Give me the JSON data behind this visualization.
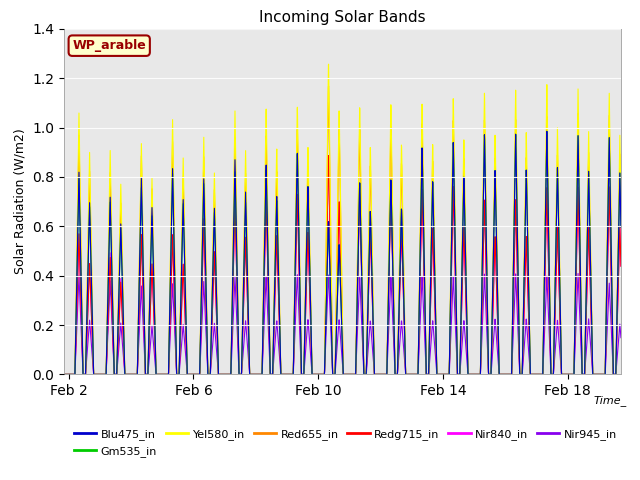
{
  "title": "Incoming Solar Bands",
  "xlabel": "Time_",
  "ylabel": "Solar Radiation (W/m2)",
  "ylim": [
    0,
    1.4
  ],
  "plot_bg_color": "#e8e8e8",
  "annotation_text": "WP_arable",
  "annotation_bg": "#ffffcc",
  "annotation_fg": "#990000",
  "series_order": [
    "Nir945_in",
    "Nir840_in",
    "Redg715_in",
    "Red655_in",
    "Yel580_in",
    "Gm535_in",
    "Blu475_in"
  ],
  "series": {
    "Blu475_in": {
      "color": "#0000cc",
      "lw": 0.8
    },
    "Gm535_in": {
      "color": "#00cc00",
      "lw": 0.8
    },
    "Yel580_in": {
      "color": "#ffff00",
      "lw": 0.8
    },
    "Red655_in": {
      "color": "#ff8800",
      "lw": 0.8
    },
    "Redg715_in": {
      "color": "#ff0000",
      "lw": 0.8
    },
    "Nir840_in": {
      "color": "#ff00ff",
      "lw": 0.8
    },
    "Nir945_in": {
      "color": "#8800ee",
      "lw": 0.8
    }
  },
  "legend_order": [
    "Blu475_in",
    "Gm535_in",
    "Yel580_in",
    "Red655_in",
    "Redg715_in",
    "Nir840_in",
    "Nir945_in"
  ],
  "xtick_labels": [
    "Feb 2",
    "Feb 6",
    "Feb 10",
    "Feb 14",
    "Feb 18"
  ],
  "xtick_positions": [
    2,
    6,
    10,
    14,
    18
  ],
  "ytick_positions": [
    0.0,
    0.2,
    0.4,
    0.6,
    0.8,
    1.0,
    1.2,
    1.4
  ],
  "day_peaks": {
    "2": {
      "Yel580_in": 1.06,
      "Red655_in": 0.97,
      "Redg715_in": 0.6,
      "Nir840_in": 0.6,
      "Nir945_in": 0.4,
      "Gm535_in": 0.8,
      "Blu475_in": 0.82
    },
    "3": {
      "Yel580_in": 0.91,
      "Red655_in": 0.82,
      "Redg715_in": 0.5,
      "Nir840_in": 0.52,
      "Nir945_in": 0.38,
      "Gm535_in": 0.7,
      "Blu475_in": 0.72
    },
    "4": {
      "Yel580_in": 0.94,
      "Red655_in": 0.89,
      "Redg715_in": 0.6,
      "Nir840_in": 0.6,
      "Nir945_in": 0.36,
      "Gm535_in": 0.76,
      "Blu475_in": 0.8
    },
    "5": {
      "Yel580_in": 1.04,
      "Red655_in": 0.95,
      "Redg715_in": 0.6,
      "Nir840_in": 0.6,
      "Nir945_in": 0.37,
      "Gm535_in": 0.82,
      "Blu475_in": 0.84
    },
    "6": {
      "Yel580_in": 0.97,
      "Red655_in": 0.89,
      "Redg715_in": 0.67,
      "Nir840_in": 0.67,
      "Nir945_in": 0.38,
      "Gm535_in": 0.78,
      "Blu475_in": 0.8
    },
    "7": {
      "Yel580_in": 1.08,
      "Red655_in": 0.97,
      "Redg715_in": 0.75,
      "Nir840_in": 0.75,
      "Nir945_in": 0.4,
      "Gm535_in": 0.83,
      "Blu475_in": 0.88
    },
    "8": {
      "Yel580_in": 1.09,
      "Red655_in": 0.98,
      "Redg715_in": 0.76,
      "Nir840_in": 0.76,
      "Nir945_in": 0.4,
      "Gm535_in": 0.84,
      "Blu475_in": 0.86
    },
    "9": {
      "Yel580_in": 1.1,
      "Red655_in": 1.01,
      "Redg715_in": 0.78,
      "Nir840_in": 0.78,
      "Nir945_in": 0.41,
      "Gm535_in": 0.91,
      "Blu475_in": 0.91
    },
    "10": {
      "Yel580_in": 1.28,
      "Red655_in": 1.19,
      "Redg715_in": 0.95,
      "Nir840_in": 0.95,
      "Nir945_in": 0.41,
      "Gm535_in": 0.63,
      "Blu475_in": 0.63
    },
    "11": {
      "Yel580_in": 1.1,
      "Red655_in": 1.01,
      "Redg715_in": 0.79,
      "Nir840_in": 0.79,
      "Nir945_in": 0.4,
      "Gm535_in": 0.79,
      "Blu475_in": 0.79
    },
    "12": {
      "Yel580_in": 1.11,
      "Red655_in": 1.02,
      "Redg715_in": 0.8,
      "Nir840_in": 0.8,
      "Nir945_in": 0.4,
      "Gm535_in": 0.8,
      "Blu475_in": 0.8
    },
    "13": {
      "Yel580_in": 1.11,
      "Red655_in": 1.03,
      "Redg715_in": 0.8,
      "Nir840_in": 0.8,
      "Nir945_in": 0.4,
      "Gm535_in": 0.93,
      "Blu475_in": 0.93
    },
    "14": {
      "Yel580_in": 1.13,
      "Red655_in": 1.04,
      "Redg715_in": 0.81,
      "Nir840_in": 0.81,
      "Nir945_in": 0.4,
      "Gm535_in": 0.95,
      "Blu475_in": 0.95
    },
    "15": {
      "Yel580_in": 1.15,
      "Red655_in": 1.04,
      "Redg715_in": 0.75,
      "Nir840_in": 0.75,
      "Nir945_in": 0.41,
      "Gm535_in": 0.98,
      "Blu475_in": 0.98
    },
    "16": {
      "Yel580_in": 1.16,
      "Red655_in": 1.04,
      "Redg715_in": 0.75,
      "Nir840_in": 0.75,
      "Nir945_in": 0.41,
      "Gm535_in": 0.98,
      "Blu475_in": 0.98
    },
    "17": {
      "Yel580_in": 1.18,
      "Red655_in": 1.05,
      "Redg715_in": 0.8,
      "Nir840_in": 0.8,
      "Nir945_in": 0.4,
      "Gm535_in": 0.99,
      "Blu475_in": 0.99
    },
    "18": {
      "Yel580_in": 1.16,
      "Red655_in": 1.06,
      "Redg715_in": 0.8,
      "Nir840_in": 0.8,
      "Nir945_in": 0.41,
      "Gm535_in": 0.97,
      "Blu475_in": 0.97
    },
    "19": {
      "Yel580_in": 1.14,
      "Red655_in": 1.05,
      "Redg715_in": 0.8,
      "Nir840_in": 0.8,
      "Nir945_in": 0.37,
      "Gm535_in": 0.96,
      "Blu475_in": 0.96
    }
  }
}
